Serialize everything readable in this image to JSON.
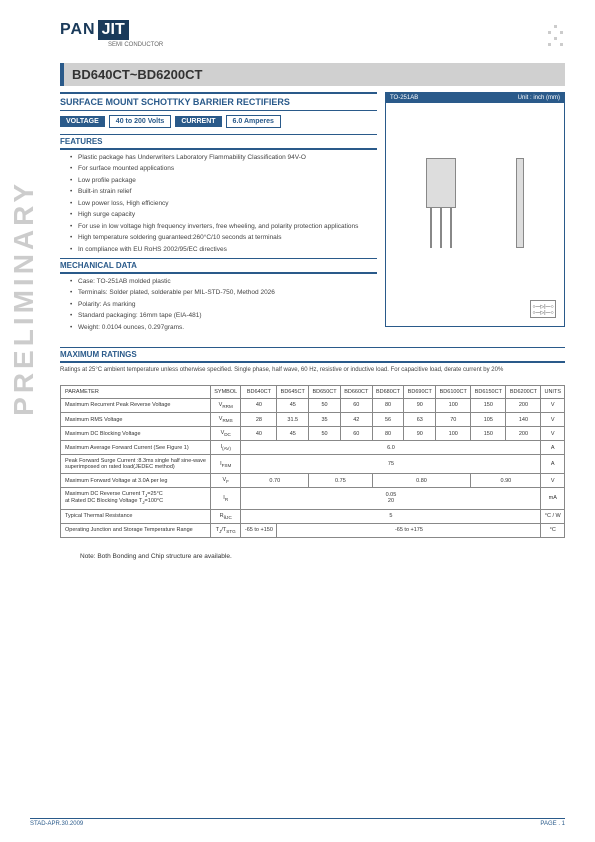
{
  "logo": {
    "part1": "PAN",
    "part2": "JIT",
    "sub": "SEMI\nCONDUCTOR"
  },
  "vertical_text": "PRELIMINARY",
  "title": "BD640CT~BD6200CT",
  "subtitle": "SURFACE MOUNT SCHOTTKY BARRIER RECTIFIERS",
  "specs": {
    "voltage_label": "VOLTAGE",
    "voltage_value": "40 to 200 Volts",
    "current_label": "CURRENT",
    "current_value": "6.0 Amperes"
  },
  "package": {
    "name": "TO-251AB",
    "unit": "Unit : inch (mm)"
  },
  "features": {
    "heading": "FEATURES",
    "items": [
      "Plastic package has Underwriters Laboratory Flammability Classification 94V-O",
      "For surface mounted applications",
      "Low profile package",
      "Built-in strain relief",
      "Low power loss, High efficiency",
      "High surge capacity",
      "For use in low voltage high frequency inverters, free wheeling, and polarity protection applications",
      "High temperature soldering guaranteed:260°C/10 seconds at terminals",
      "In compliance with EU RoHS 2002/95/EC directives"
    ]
  },
  "mech": {
    "heading": "MECHANICAL DATA",
    "items": [
      "Case: TO-251AB molded plastic",
      "Terminals: Solder plated, solderable per MIL-STD-750, Method 2026",
      "Polarity: As marking",
      "Standard packaging: 16mm tape (EIA-481)",
      "Weight: 0.0104 ounces, 0.297grams."
    ]
  },
  "ratings": {
    "heading": "MAXIMUM RATINGS",
    "note": "Ratings at 25°C ambient temperature unless otherwise specified. Single phase, half wave, 60 Hz, resistive or inductive load. For capacitive load, derate current by 20%"
  },
  "table": {
    "headers": [
      "PARAMETER",
      "SYMBOL",
      "BD640CT",
      "BD645CT",
      "BD650CT",
      "BD660CT",
      "BD680CT",
      "BD690CT",
      "BD6100CT",
      "BD6150CT",
      "BD6200CT",
      "UNITS"
    ],
    "rows": [
      {
        "param": "Maximum Recurrent Peak Reverse Voltage",
        "sym": "V<sub>RRM</sub>",
        "vals": [
          "40",
          "45",
          "50",
          "60",
          "80",
          "90",
          "100",
          "150",
          "200"
        ],
        "unit": "V"
      },
      {
        "param": "Maximum RMS Voltage",
        "sym": "V<sub>RMS</sub>",
        "vals": [
          "28",
          "31.5",
          "35",
          "42",
          "56",
          "63",
          "70",
          "105",
          "140"
        ],
        "unit": "V"
      },
      {
        "param": "Maximum DC Blocking Voltage",
        "sym": "V<sub>DC</sub>",
        "vals": [
          "40",
          "45",
          "50",
          "60",
          "80",
          "90",
          "100",
          "150",
          "200"
        ],
        "unit": "V"
      },
      {
        "param": "Maximum Average Forward Current (See Figure 1)",
        "sym": "I<sub>(AV)</sub>",
        "span": "6.0",
        "unit": "A"
      },
      {
        "param": "Peak Forward Surge Current :8.3ms single half sine-wave superimposed on rated load(JEDEC method)",
        "sym": "I<sub>FSM</sub>",
        "span": "75",
        "unit": "A"
      },
      {
        "param": "Maximum Forward Voltage at 3.0A per leg",
        "sym": "V<sub>F</sub>",
        "groups": [
          {
            "span": 2,
            "val": "0.70"
          },
          {
            "span": 2,
            "val": "0.75"
          },
          {
            "span": 3,
            "val": "0.80"
          },
          {
            "span": 2,
            "val": "0.90"
          }
        ],
        "unit": "V"
      },
      {
        "param": "Maximum DC Reverse Current T<sub>J</sub>=25°C<br>at Rated DC Blocking Voltage T<sub>J</sub>=100°C",
        "sym": "I<sub>R</sub>",
        "span": "0.05<br>20",
        "unit": "mA"
      },
      {
        "param": "Typical Thermal Resistance",
        "sym": "R<sub>θJC</sub>",
        "span": "5",
        "unit": "°C / W"
      },
      {
        "param": "Operating Junction and Storage Temperature Range",
        "sym": "T<sub>J</sub>/T<sub>STG</sub>",
        "first": "-65 to +150",
        "rest_span": "-65 to +175",
        "unit": "°C"
      }
    ]
  },
  "footer_note": "Note: Both Bonding and Chip structure are available.",
  "page_footer": {
    "left": "STAD-APR.30.2009",
    "right": "PAGE . 1"
  }
}
